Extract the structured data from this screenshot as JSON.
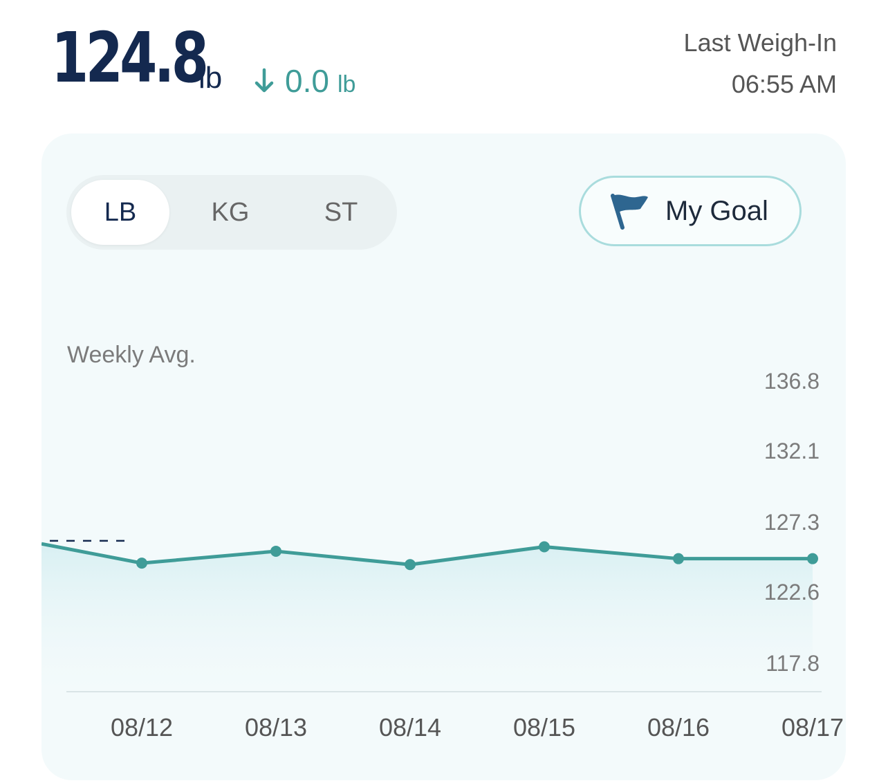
{
  "header": {
    "weight_value": "124.8",
    "weight_unit": "lb",
    "delta_direction_icon": "arrow-down-icon",
    "delta_value": "0.0",
    "delta_unit": "lb",
    "last_weigh_in_label": "Last Weigh-In",
    "last_weigh_in_time": "06:55 AM"
  },
  "units_toggle": {
    "options": [
      "LB",
      "KG",
      "ST"
    ],
    "selected": "LB"
  },
  "goal_button": {
    "label": "My Goal",
    "icon": "flag-icon"
  },
  "chart_label": "Weekly Avg.",
  "colors": {
    "primary_text": "#14294f",
    "accent_teal": "#3f9c98",
    "card_bg": "#f3fafb",
    "goal_border": "#a9dcdd"
  },
  "chart_data": {
    "type": "line",
    "x": [
      "08/12",
      "08/13",
      "08/14",
      "08/15",
      "08/16",
      "08/17"
    ],
    "values": [
      124.5,
      125.3,
      124.4,
      125.6,
      124.8,
      124.8
    ],
    "prior_value": 125.8,
    "weekly_avg_value": 126.0,
    "y_ticks": [
      136.8,
      132.1,
      127.3,
      122.6,
      117.8
    ],
    "ylim": [
      117.8,
      136.8
    ],
    "area_fill": true,
    "grid": false
  }
}
